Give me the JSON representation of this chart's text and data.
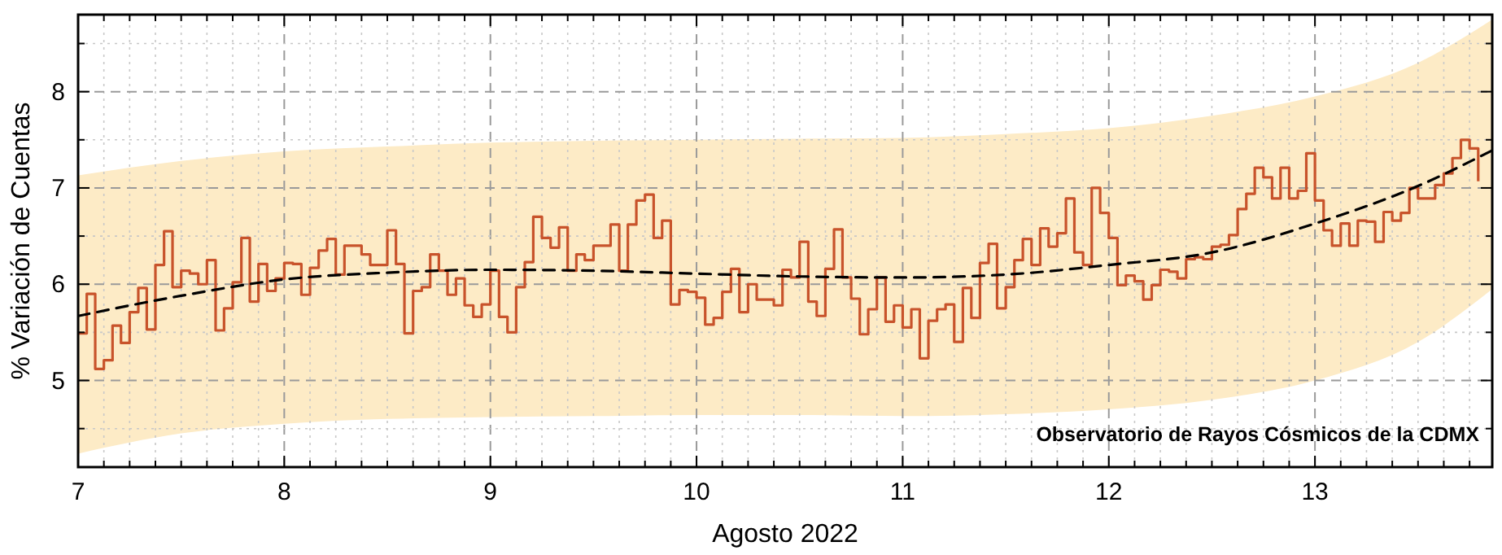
{
  "chart_data": {
    "type": "step",
    "xlabel": "Agosto 2022",
    "ylabel": "% Variación de Cuentas",
    "annotations": [
      "Observatorio de Rayos Cósmicos de la CDMX"
    ],
    "xlim": [
      7,
      13.86
    ],
    "ylim": [
      4.1,
      8.8
    ],
    "xticks": [
      7,
      {
        "value": 7.125,
        "label": null
      },
      {
        "value": 7.25,
        "label": null
      },
      {
        "value": 7.375,
        "label": null
      },
      {
        "value": 7.5,
        "label": null
      },
      {
        "value": 7.625,
        "label": null
      },
      {
        "value": 7.75,
        "label": null
      },
      {
        "value": 7.875,
        "label": null
      },
      8,
      {
        "value": 8.125,
        "label": null
      },
      {
        "value": 8.25,
        "label": null
      },
      {
        "value": 8.375,
        "label": null
      },
      {
        "value": 8.5,
        "label": null
      },
      {
        "value": 8.625,
        "label": null
      },
      {
        "value": 8.75,
        "label": null
      },
      {
        "value": 8.875,
        "label": null
      },
      9,
      {
        "value": 9.125,
        "label": null
      },
      {
        "value": 9.25,
        "label": null
      },
      {
        "value": 9.375,
        "label": null
      },
      {
        "value": 9.5,
        "label": null
      },
      {
        "value": 9.625,
        "label": null
      },
      {
        "value": 9.75,
        "label": null
      },
      {
        "value": 9.875,
        "label": null
      },
      10,
      {
        "value": 10.125,
        "label": null
      },
      {
        "value": 10.25,
        "label": null
      },
      {
        "value": 10.375,
        "label": null
      },
      {
        "value": 10.5,
        "label": null
      },
      {
        "value": 10.625,
        "label": null
      },
      {
        "value": 10.75,
        "label": null
      },
      {
        "value": 10.875,
        "label": null
      },
      11,
      {
        "value": 11.125,
        "label": null
      },
      {
        "value": 11.25,
        "label": null
      },
      {
        "value": 11.375,
        "label": null
      },
      {
        "value": 11.5,
        "label": null
      },
      {
        "value": 11.625,
        "label": null
      },
      {
        "value": 11.75,
        "label": null
      },
      {
        "value": 11.875,
        "label": null
      },
      12,
      {
        "value": 12.125,
        "label": null
      },
      {
        "value": 12.25,
        "label": null
      },
      {
        "value": 12.375,
        "label": null
      },
      {
        "value": 12.5,
        "label": null
      },
      {
        "value": 12.625,
        "label": null
      },
      {
        "value": 12.75,
        "label": null
      },
      {
        "value": 12.875,
        "label": null
      },
      13,
      {
        "value": 13.125,
        "label": null
      },
      {
        "value": 13.25,
        "label": null
      },
      {
        "value": 13.375,
        "label": null
      },
      {
        "value": 13.5,
        "label": null
      },
      {
        "value": 13.625,
        "label": null
      },
      {
        "value": 13.75,
        "label": null
      }
    ],
    "yticks": [
      {
        "value": 4.5,
        "label": null
      },
      5,
      {
        "value": 5.5,
        "label": null
      },
      6,
      {
        "value": 6.5,
        "label": null
      },
      7,
      {
        "value": 7.5,
        "label": null
      },
      8,
      {
        "value": 8.5,
        "label": null
      }
    ],
    "grid": true,
    "series": [
      {
        "type": "line",
        "color": "#000000",
        "line_style": "dashed",
        "x": [
          7,
          7.5,
          8,
          8.5,
          9,
          9.5,
          10,
          10.5,
          11,
          11.5,
          12,
          12.5,
          13,
          13.5,
          13.86
        ],
        "values": [
          5.67,
          5.88,
          6.05,
          6.12,
          6.15,
          6.14,
          6.11,
          6.08,
          6.07,
          6.1,
          6.2,
          6.33,
          6.63,
          7.02,
          7.39
        ],
        "lower": [
          4.24,
          4.45,
          4.55,
          4.6,
          4.62,
          4.63,
          4.64,
          4.64,
          4.63,
          4.65,
          4.7,
          4.8,
          5.0,
          5.4,
          5.95
        ],
        "upper": [
          7.13,
          7.28,
          7.38,
          7.43,
          7.47,
          7.49,
          7.5,
          7.51,
          7.52,
          7.56,
          7.62,
          7.75,
          7.95,
          8.3,
          8.75
        ]
      },
      {
        "color": "#c8532b",
        "x": [
          7,
          7.042,
          7.083,
          7.125,
          7.167,
          7.208,
          7.25,
          7.292,
          7.333,
          7.375,
          7.417,
          7.458,
          7.5,
          7.542,
          7.583,
          7.625,
          7.667,
          7.708,
          7.75,
          7.792,
          7.833,
          7.875,
          7.917,
          7.958,
          8,
          8.042,
          8.083,
          8.125,
          8.167,
          8.208,
          8.25,
          8.292,
          8.333,
          8.375,
          8.417,
          8.458,
          8.5,
          8.542,
          8.583,
          8.625,
          8.667,
          8.708,
          8.75,
          8.792,
          8.833,
          8.875,
          8.917,
          8.958,
          9,
          9.042,
          9.083,
          9.125,
          9.167,
          9.208,
          9.25,
          9.292,
          9.333,
          9.375,
          9.417,
          9.458,
          9.5,
          9.542,
          9.583,
          9.625,
          9.667,
          9.708,
          9.75,
          9.792,
          9.833,
          9.875,
          9.917,
          9.958,
          10,
          10.042,
          10.083,
          10.125,
          10.167,
          10.208,
          10.25,
          10.292,
          10.333,
          10.375,
          10.417,
          10.458,
          10.5,
          10.542,
          10.583,
          10.625,
          10.667,
          10.708,
          10.75,
          10.792,
          10.833,
          10.875,
          10.917,
          10.958,
          11,
          11.042,
          11.083,
          11.125,
          11.167,
          11.208,
          11.25,
          11.292,
          11.333,
          11.375,
          11.417,
          11.458,
          11.5,
          11.542,
          11.583,
          11.625,
          11.667,
          11.708,
          11.75,
          11.792,
          11.833,
          11.875,
          11.917,
          11.958,
          12,
          12.042,
          12.083,
          12.125,
          12.167,
          12.208,
          12.25,
          12.292,
          12.333,
          12.375,
          12.417,
          12.458,
          12.5,
          12.542,
          12.583,
          12.625,
          12.667,
          12.708,
          12.75,
          12.792,
          12.833,
          12.875,
          12.917,
          12.958,
          13,
          13.042,
          13.083,
          13.125,
          13.167,
          13.208,
          13.25,
          13.292,
          13.333,
          13.375,
          13.417,
          13.458,
          13.5,
          13.542,
          13.583,
          13.625,
          13.667,
          13.708,
          13.75,
          13.792
        ],
        "values": [
          5.49,
          5.9,
          5.12,
          5.21,
          5.57,
          5.39,
          5.71,
          5.96,
          5.53,
          6.2,
          6.55,
          5.97,
          6.14,
          6.11,
          6.0,
          6.25,
          5.52,
          5.75,
          6.02,
          6.48,
          5.82,
          6.21,
          5.93,
          6.06,
          6.22,
          6.21,
          5.89,
          6.17,
          6.35,
          6.47,
          6.1,
          6.4,
          6.4,
          6.31,
          6.2,
          6.2,
          6.56,
          6.21,
          5.49,
          5.93,
          5.97,
          6.31,
          6.14,
          5.89,
          6.06,
          5.78,
          5.66,
          5.79,
          6.14,
          5.66,
          5.5,
          5.97,
          6.23,
          6.7,
          6.48,
          6.38,
          6.59,
          6.14,
          6.31,
          6.25,
          6.4,
          6.4,
          6.62,
          6.14,
          6.62,
          6.87,
          6.93,
          6.48,
          6.66,
          5.79,
          5.94,
          5.92,
          5.86,
          5.58,
          5.65,
          5.92,
          6.16,
          5.71,
          6.0,
          5.84,
          5.84,
          5.78,
          6.15,
          6.07,
          6.44,
          5.82,
          5.67,
          6.16,
          6.57,
          6.07,
          5.85,
          5.48,
          5.74,
          6.07,
          5.61,
          5.78,
          5.55,
          5.74,
          5.23,
          5.62,
          5.74,
          5.79,
          5.4,
          5.96,
          5.65,
          6.22,
          6.42,
          5.75,
          5.97,
          6.25,
          6.47,
          6.2,
          6.58,
          6.39,
          6.53,
          6.89,
          6.33,
          6.2,
          7.0,
          6.74,
          6.48,
          5.99,
          6.09,
          6.03,
          5.84,
          5.99,
          6.15,
          6.13,
          6.06,
          6.26,
          6.28,
          6.26,
          6.39,
          6.41,
          6.51,
          6.78,
          6.94,
          7.21,
          7.11,
          6.89,
          7.21,
          6.89,
          6.97,
          7.36,
          6.87,
          6.56,
          6.4,
          6.63,
          6.4,
          6.66,
          6.65,
          6.44,
          6.75,
          6.66,
          6.74,
          7.0,
          6.89,
          6.89,
          7.03,
          7.15,
          7.31,
          7.5,
          7.41,
          7.07
        ]
      }
    ]
  }
}
